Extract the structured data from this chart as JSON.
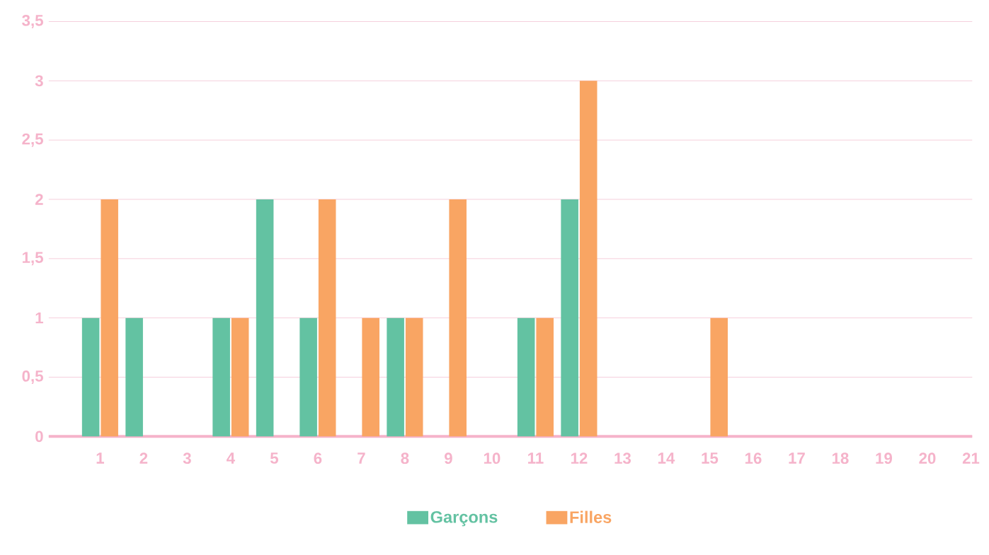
{
  "chart_data": {
    "type": "bar",
    "categories": [
      "1",
      "2",
      "3",
      "4",
      "5",
      "6",
      "7",
      "8",
      "9",
      "10",
      "11",
      "12",
      "13",
      "14",
      "15",
      "16",
      "17",
      "18",
      "19",
      "20",
      "21"
    ],
    "series": [
      {
        "name": "Garçons",
        "color": "#63c2a2",
        "values": [
          1,
          1,
          0,
          1,
          2,
          1,
          0,
          1,
          0,
          0,
          1,
          2,
          0,
          0,
          0,
          0,
          0,
          0,
          0,
          0,
          0
        ]
      },
      {
        "name": "Filles",
        "color": "#f9a563",
        "values": [
          2,
          0,
          0,
          1,
          0,
          2,
          1,
          1,
          2,
          0,
          1,
          3,
          0,
          0,
          1,
          0,
          0,
          0,
          0,
          0,
          0
        ]
      }
    ],
    "ylim": [
      0,
      3.5
    ],
    "yticks": [
      {
        "value": 0,
        "label": "0"
      },
      {
        "value": 0.5,
        "label": "0,5"
      },
      {
        "value": 1,
        "label": "1"
      },
      {
        "value": 1.5,
        "label": "1,5"
      },
      {
        "value": 2,
        "label": "2"
      },
      {
        "value": 2.5,
        "label": "2,5"
      },
      {
        "value": 3,
        "label": "3"
      },
      {
        "value": 3.5,
        "label": "3,5"
      }
    ],
    "grid": "y",
    "legend": "bottom"
  }
}
